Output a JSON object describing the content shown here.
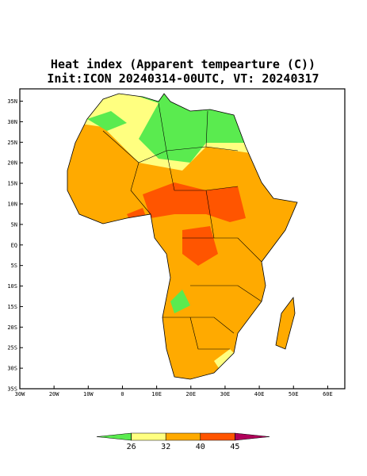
{
  "chart_data": {
    "type": "map",
    "title": "Heat index (Apparent tempearture (C))",
    "subtitle": "Init:ICON 20240314-00UTC, VT: 20240317",
    "xlim": [
      -30,
      65
    ],
    "ylim": [
      -35,
      38
    ],
    "xticks": [
      {
        "value": -30,
        "label": "30W"
      },
      {
        "value": -20,
        "label": "20W"
      },
      {
        "value": -10,
        "label": "10W"
      },
      0,
      {
        "value": 10,
        "label": "10E"
      },
      {
        "value": 20,
        "label": "20E"
      },
      {
        "value": 30,
        "label": "30E"
      },
      {
        "value": 40,
        "label": "40E"
      },
      {
        "value": 50,
        "label": "50E"
      },
      {
        "value": 60,
        "label": "60E"
      }
    ],
    "yticks": [
      {
        "value": 35,
        "label": "35N"
      },
      {
        "value": 30,
        "label": "30N"
      },
      {
        "value": 25,
        "label": "25N"
      },
      {
        "value": 20,
        "label": "20N"
      },
      {
        "value": 15,
        "label": "15N"
      },
      {
        "value": 10,
        "label": "10N"
      },
      {
        "value": 5,
        "label": "5N"
      },
      {
        "value": 0,
        "label": "EQ"
      },
      {
        "value": -5,
        "label": "5S"
      },
      {
        "value": -10,
        "label": "10S"
      },
      {
        "value": -15,
        "label": "15S"
      },
      {
        "value": -20,
        "label": "20S"
      },
      {
        "value": -25,
        "label": "25S"
      },
      {
        "value": -30,
        "label": "30S"
      },
      {
        "value": -35,
        "label": "35S"
      }
    ],
    "colorbar": {
      "levels": [
        26,
        32,
        40,
        45
      ],
      "colors": [
        "#5aeb4f",
        "#ffff80",
        "#ffaa00",
        "#ff5500",
        "#b0005a"
      ]
    }
  }
}
